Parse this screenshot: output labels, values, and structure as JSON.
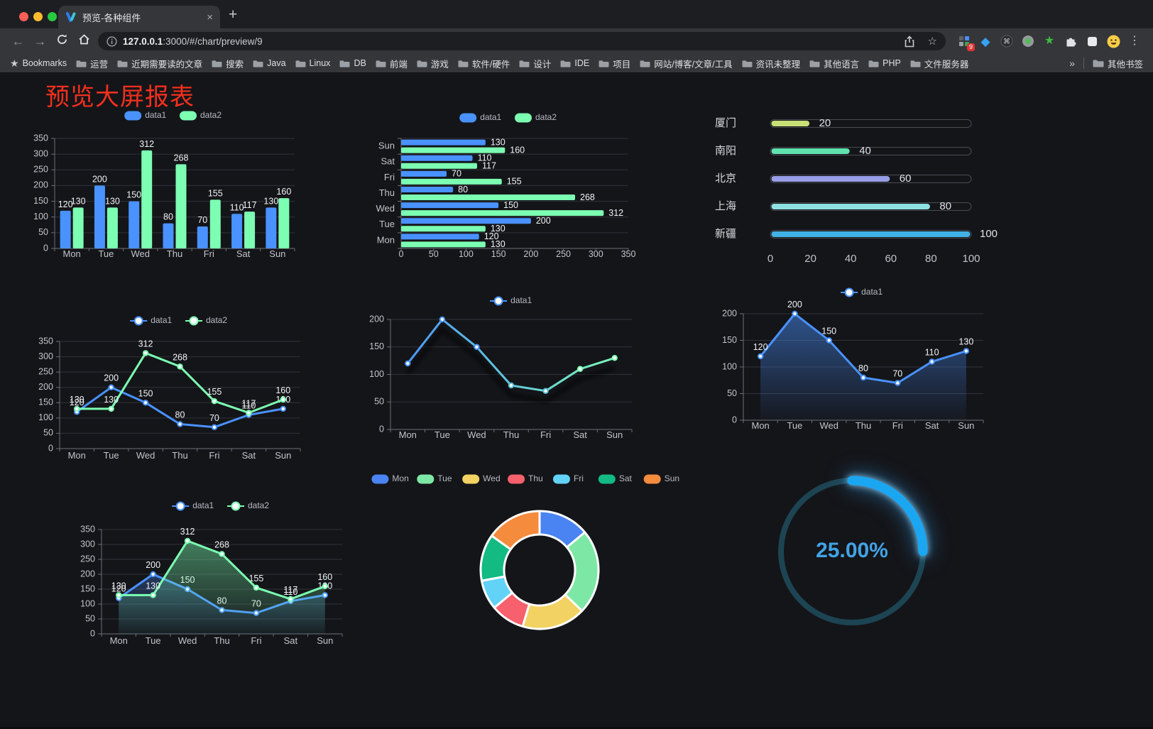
{
  "browser": {
    "tab": {
      "title": "预览-各种组件",
      "close": "×",
      "new_tab": "+"
    },
    "address": {
      "host": "127.0.0.1",
      "rest": ":3000/#/chart/preview/9"
    },
    "extensions_badge": "9",
    "bookmarks": {
      "root": "Bookmarks",
      "folders": [
        "运营",
        "近期需要读的文章",
        "搜索",
        "Java",
        "Linux",
        "DB",
        "前端",
        "游戏",
        "软件/硬件",
        "设计",
        "IDE",
        "项目",
        "网站/博客/文章/工具",
        "资讯未整理",
        "其他语言",
        "PHP",
        "文件服务器"
      ],
      "overflow": "»",
      "other": "其他书签"
    }
  },
  "page": {
    "title": "预览大屏报表",
    "title_color": "#f2301d"
  },
  "chart_data": [
    {
      "id": "bar-vertical",
      "type": "bar",
      "categories": [
        "Mon",
        "Tue",
        "Wed",
        "Thu",
        "Fri",
        "Sat",
        "Sun"
      ],
      "series": [
        {
          "name": "data1",
          "color": "#4992ff",
          "values": [
            120,
            200,
            150,
            80,
            70,
            110,
            130
          ]
        },
        {
          "name": "data2",
          "color": "#7cffb2",
          "values": [
            130,
            130,
            312,
            268,
            155,
            117,
            160
          ]
        }
      ],
      "ylim": [
        0,
        350
      ],
      "ytick": 50,
      "labels": true,
      "legend_position": "top",
      "grid": true
    },
    {
      "id": "bar-horizontal",
      "type": "bar-horizontal",
      "categories": [
        "Mon",
        "Tue",
        "Wed",
        "Thu",
        "Fri",
        "Sat",
        "Sun"
      ],
      "series": [
        {
          "name": "data1",
          "color": "#4992ff",
          "values": [
            120,
            200,
            150,
            80,
            70,
            110,
            130
          ]
        },
        {
          "name": "data2",
          "color": "#7cffb2",
          "values": [
            130,
            130,
            312,
            268,
            155,
            117,
            160
          ]
        }
      ],
      "xlim": [
        0,
        350
      ],
      "xtick": 50,
      "labels": true,
      "legend_position": "top",
      "grid": true
    },
    {
      "id": "city-progress",
      "type": "progress",
      "items": [
        {
          "label": "厦门",
          "value": 20,
          "color": "#c8e075"
        },
        {
          "label": "南阳",
          "value": 40,
          "color": "#5fe2ae"
        },
        {
          "label": "北京",
          "value": 60,
          "color": "#989ee6"
        },
        {
          "label": "上海",
          "value": 80,
          "color": "#8fe0e2"
        },
        {
          "label": "新疆",
          "value": 100,
          "color": "#41b2e5"
        }
      ],
      "xlim": [
        0,
        100
      ],
      "xticks": [
        0,
        20,
        40,
        60,
        80,
        100
      ]
    },
    {
      "id": "line-dual",
      "type": "line",
      "categories": [
        "Mon",
        "Tue",
        "Wed",
        "Thu",
        "Fri",
        "Sat",
        "Sun"
      ],
      "series": [
        {
          "name": "data1",
          "color": "#4992ff",
          "values": [
            120,
            200,
            150,
            80,
            70,
            110,
            130
          ]
        },
        {
          "name": "data2",
          "color": "#7cffb2",
          "values": [
            130,
            130,
            312,
            268,
            155,
            117,
            160
          ]
        }
      ],
      "ylim": [
        0,
        350
      ],
      "ytick": 50,
      "labels": true,
      "legend_position": "top",
      "grid": true
    },
    {
      "id": "line-gradient",
      "type": "line",
      "categories": [
        "Mon",
        "Tue",
        "Wed",
        "Thu",
        "Fri",
        "Sat",
        "Sun"
      ],
      "series": [
        {
          "name": "data1",
          "color_start": "#4992ff",
          "color_end": "#7cffb2",
          "values": [
            120,
            200,
            150,
            80,
            70,
            110,
            130
          ]
        }
      ],
      "ylim": [
        0,
        200
      ],
      "ytick": 50,
      "labels": false,
      "shadow": true,
      "legend_position": "top",
      "grid": true
    },
    {
      "id": "area-single",
      "type": "area",
      "categories": [
        "Mon",
        "Tue",
        "Wed",
        "Thu",
        "Fri",
        "Sat",
        "Sun"
      ],
      "series": [
        {
          "name": "data1",
          "color": "#4992ff",
          "values": [
            120,
            200,
            150,
            80,
            70,
            110,
            130
          ]
        }
      ],
      "ylim": [
        0,
        200
      ],
      "ytick": 50,
      "labels": true,
      "legend_position": "top",
      "grid": true
    },
    {
      "id": "area-dual",
      "type": "area",
      "categories": [
        "Mon",
        "Tue",
        "Wed",
        "Thu",
        "Fri",
        "Sat",
        "Sun"
      ],
      "series": [
        {
          "name": "data1",
          "color": "#4992ff",
          "values": [
            120,
            200,
            150,
            80,
            70,
            110,
            130
          ]
        },
        {
          "name": "data2",
          "color": "#7cffb2",
          "values": [
            130,
            130,
            312,
            268,
            155,
            117,
            160
          ]
        }
      ],
      "ylim": [
        0,
        350
      ],
      "ytick": 50,
      "labels": true,
      "legend_position": "top",
      "grid": true
    },
    {
      "id": "donut",
      "type": "pie",
      "categories": [
        "Mon",
        "Tue",
        "Wed",
        "Thu",
        "Fri",
        "Sat",
        "Sun"
      ],
      "values": [
        120,
        200,
        150,
        80,
        70,
        110,
        130
      ],
      "colors": [
        "#4a83f2",
        "#7de8a5",
        "#f2d262",
        "#f7606d",
        "#63d2f7",
        "#13ba81",
        "#f58b3d"
      ],
      "inner_radius_ratio": 0.6,
      "border_color": "#ffffff",
      "legend_position": "top"
    },
    {
      "id": "gauge",
      "type": "gauge",
      "value": 25,
      "value_text": "25.00%",
      "arc_color": "#1ba6f2",
      "track_color": "#1d4452",
      "text_color": "#41a3e6"
    }
  ]
}
